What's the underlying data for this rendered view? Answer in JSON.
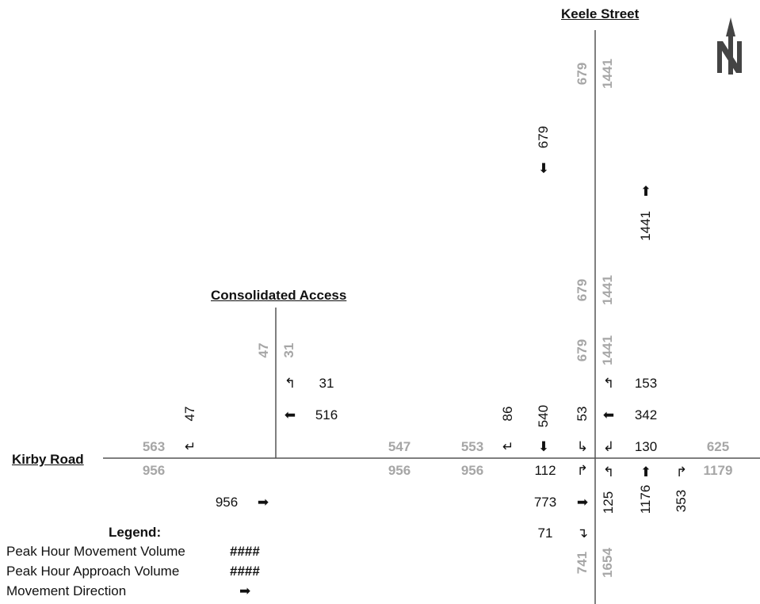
{
  "streets": {
    "keele": "Keele Street",
    "consolidated": "Consolidated Access",
    "kirby": "Kirby Road"
  },
  "colors": {
    "movement": "#111111",
    "approach": "#a6a6a6"
  },
  "keele_north_leg": {
    "approach_sb_top": "679",
    "approach_nb_top": "1441",
    "movement_sb": "679",
    "movement_nb": "1441",
    "approach_sb_mid": "679",
    "approach_nb_mid": "1441",
    "approach_sb_low": "679",
    "approach_nb_low": "1441"
  },
  "keele_intersection": {
    "sb_right": "86",
    "sb_through": "540",
    "sb_left": "53",
    "wb_right": "153",
    "wb_through": "342",
    "wb_left": "130",
    "eb_left": "112",
    "eb_through": "773",
    "eb_right": "71",
    "nb_left": "125",
    "nb_through": "1176",
    "nb_right": "353",
    "west_leg_inbound": "553",
    "west_leg_outbound": "956",
    "east_leg_inbound": "625",
    "east_leg_outbound": "1179",
    "south_leg_outbound": "741",
    "south_leg_inbound": "1654"
  },
  "access_intersection": {
    "north_leg_out": "47",
    "north_leg_in": "31",
    "sb_left": "47",
    "wb_left_turn": "31",
    "wb_through": "516",
    "eb_through": "956",
    "west_leg_wb": "563",
    "west_leg_eb": "956",
    "east_leg_wb": "547",
    "east_leg_eb": "956"
  },
  "arrows": {
    "down": "⬇",
    "up": "⬆",
    "left": "⬅",
    "right": "➡",
    "sb_right_turn": "↵",
    "sb_left_turn": "↳",
    "wb_right_turn": "↰",
    "wb_left_turn": "↲",
    "eb_left_turn": "↱",
    "eb_right_turn": "↴",
    "nb_left_turn": "↰",
    "nb_right_turn": "↱"
  },
  "legend": {
    "title": "Legend:",
    "movement_label": "Peak Hour Movement Volume",
    "movement_sample": "####",
    "approach_label": "Peak Hour Approach Volume",
    "approach_sample": "####",
    "direction_label": "Movement Direction",
    "direction_sample": "➡"
  },
  "north_arrow_icon": "north-arrow-icon"
}
